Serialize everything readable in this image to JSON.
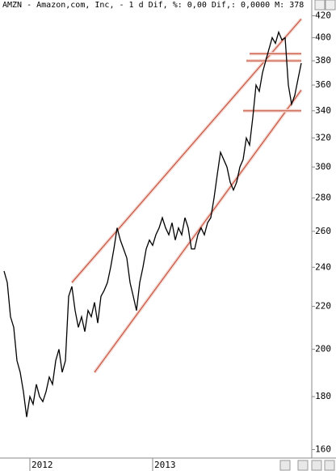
{
  "chart_data": {
    "type": "line",
    "title": "AMZN - Amazon,com, Inc, -  1 d Dif, %: 0,00 Dif,: 0,0000 M: 378",
    "categories": [
      null,
      null,
      null,
      null,
      null,
      null,
      null,
      null,
      "2012",
      null,
      null,
      null,
      null,
      null,
      null,
      null,
      null,
      null,
      null,
      null,
      null,
      null,
      null,
      null,
      null,
      null,
      null,
      null,
      null,
      null,
      null,
      null,
      null,
      null,
      null,
      null,
      null,
      null,
      null,
      null,
      null,
      null,
      null,
      null,
      null,
      null,
      "2013",
      null,
      null,
      null,
      null,
      null,
      null,
      null,
      null,
      null,
      null,
      null,
      null,
      null,
      null,
      null,
      null,
      null,
      null,
      null,
      null,
      null,
      null,
      null,
      null,
      null,
      null,
      null,
      null,
      null,
      null,
      null,
      null,
      null,
      null,
      null,
      null,
      null,
      null,
      null,
      null,
      null,
      null,
      null,
      null,
      null,
      null
    ],
    "series": [
      {
        "color": "#000000",
        "values": [
          238,
          232,
          215,
          210,
          195,
          190,
          182,
          172,
          180,
          177,
          185,
          180,
          178,
          182,
          188,
          185,
          195,
          200,
          190,
          195,
          225,
          230,
          218,
          210,
          215,
          208,
          218,
          215,
          222,
          212,
          225,
          228,
          232,
          240,
          250,
          262,
          255,
          250,
          245,
          232,
          225,
          218,
          232,
          240,
          250,
          255,
          252,
          258,
          262,
          268,
          262,
          258,
          265,
          255,
          262,
          258,
          268,
          262,
          250,
          250,
          258,
          262,
          258,
          265,
          268,
          280,
          295,
          310,
          305,
          300,
          290,
          285,
          290,
          300,
          305,
          320,
          315,
          335,
          360,
          355,
          370,
          380,
          390,
          400,
          395,
          405,
          398,
          400,
          360,
          345,
          352,
          365,
          378
        ]
      }
    ],
    "overlays": [
      {
        "color": "#c0442c",
        "start": 21,
        "end": 92,
        "values": [
          232,
          417
        ]
      },
      {
        "color": "#c0442c",
        "start": 28,
        "end": 92,
        "values": [
          190,
          356
        ]
      },
      {
        "color": "#c0442c",
        "start": 76,
        "end": 92,
        "values": [
          386,
          386
        ]
      },
      {
        "color": "#c0442c",
        "start": 75,
        "end": 92,
        "values": [
          380,
          380
        ]
      },
      {
        "color": "#c0442c",
        "start": 74,
        "end": 92,
        "values": [
          340,
          340
        ]
      }
    ],
    "ylim": [
      157,
      435
    ],
    "log_y": true,
    "yticks": [
      160,
      180,
      200,
      220,
      240,
      260,
      280,
      300,
      320,
      340,
      360,
      380,
      400,
      420
    ]
  }
}
